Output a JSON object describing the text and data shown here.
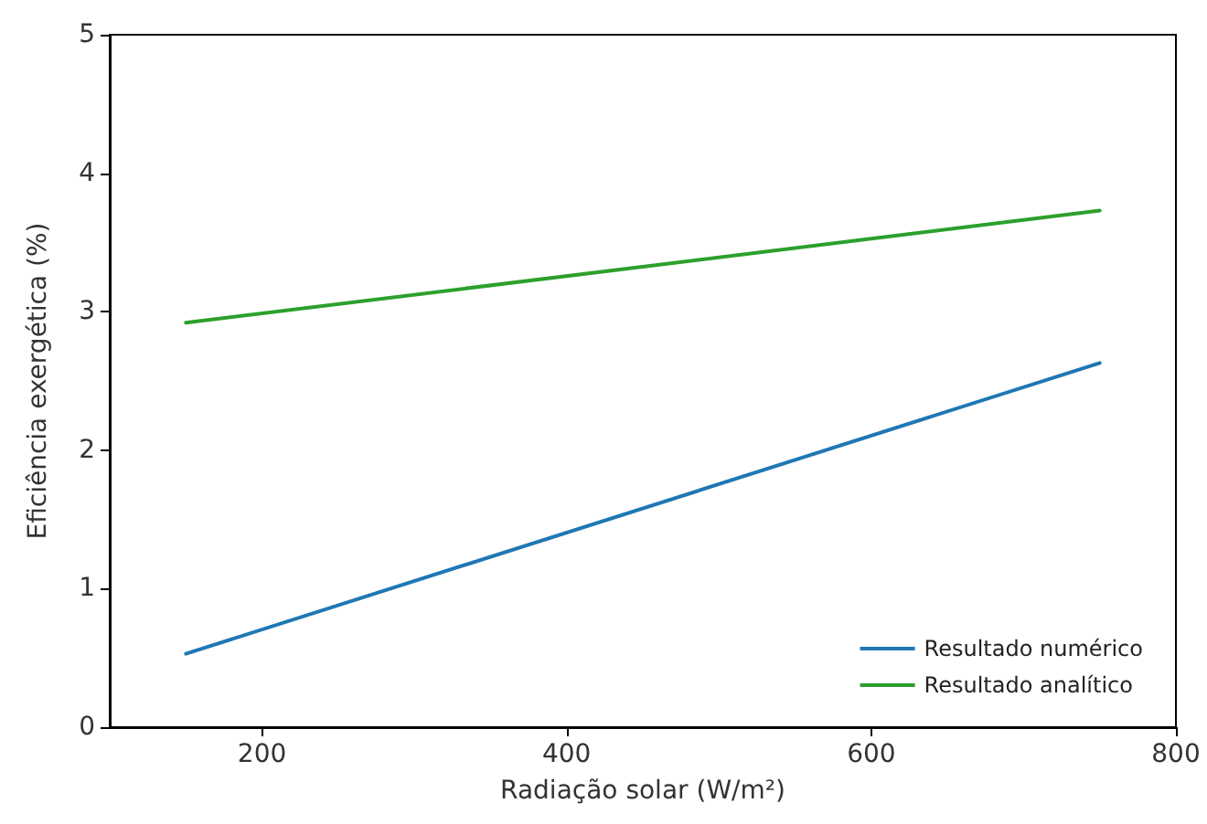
{
  "chart_data": {
    "type": "line",
    "xlabel": "Radiação solar (W/m²)",
    "ylabel": "Eficiência exergética (%)",
    "x": [
      150,
      750
    ],
    "series": [
      {
        "name": "Resultado numérico",
        "color": "#1f77b4",
        "values": [
          0.53,
          2.63
        ]
      },
      {
        "name": "Resultado analítico",
        "color": "#2ca02c",
        "values": [
          2.92,
          3.73
        ]
      }
    ],
    "xlim": [
      100,
      800
    ],
    "xticks": [
      200,
      400,
      600,
      800
    ],
    "ylim": [
      0,
      5
    ],
    "yticks": [
      0,
      1,
      2,
      3,
      4,
      5
    ],
    "legend": "bottom right",
    "marker": "none",
    "line_style": "solid"
  }
}
